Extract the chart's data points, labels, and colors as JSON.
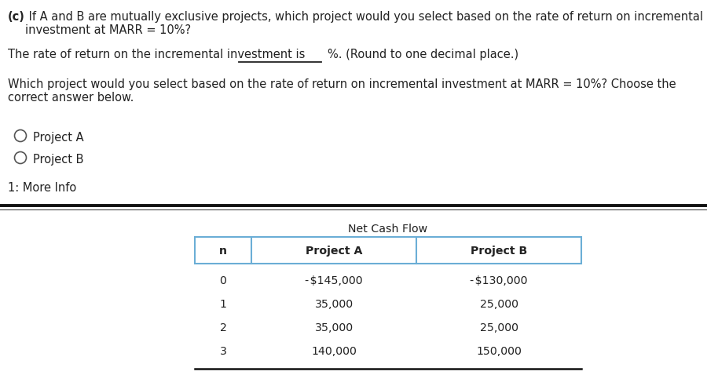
{
  "title_bold": "(c)",
  "title_rest": " If A and B are mutually exclusive projects, which project would you select based on the rate of return on incremental\ninvestment at MARR = 10%?",
  "line1_pre": "The rate of return on the incremental investment is",
  "line1_post": "%. (Round to one decimal place.)",
  "line2": "Which project would you select based on the rate of return on incremental investment at MARR = 10%? Choose the\ncorrect answer below.",
  "option_a": "Project A",
  "option_b": "Project B",
  "more_info": "1: More Info",
  "table_header_top": "Net Cash Flow",
  "table_col0": "n",
  "table_col1": "Project A",
  "table_col2": "Project B",
  "table_rows": [
    [
      "0",
      "- $145,000",
      "- $130,000"
    ],
    [
      "1",
      "35,000",
      "25,000"
    ],
    [
      "2",
      "35,000",
      "25,000"
    ],
    [
      "3",
      "140,000",
      "150,000"
    ]
  ],
  "bg_color": "#ffffff",
  "text_color": "#222222",
  "table_border_color": "#6baed6",
  "font_size_main": 10.5,
  "font_size_table": 10.2
}
